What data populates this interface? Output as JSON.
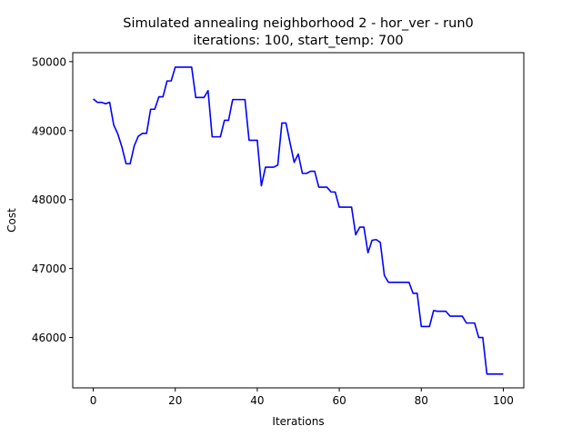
{
  "chart_data": {
    "type": "line",
    "title": "Simulated annealing neighborhood 2 - hor_ver - run0",
    "subtitle": "iterations: 100, start_temp: 700",
    "xlabel": "Iterations",
    "ylabel": "Cost",
    "xlim": [
      -5,
      105
    ],
    "ylim": [
      45270,
      50130
    ],
    "xticks": [
      0,
      20,
      40,
      60,
      80,
      100
    ],
    "yticks": [
      46000,
      47000,
      48000,
      49000,
      50000
    ],
    "grid": false,
    "line_color": "#0000ff",
    "series": [
      {
        "x": [
          0,
          1,
          2,
          3,
          4,
          5,
          6,
          7,
          8,
          9,
          10,
          11,
          12,
          13,
          14,
          15,
          16,
          17,
          18,
          19,
          20,
          21,
          22,
          23,
          24,
          25,
          26,
          27,
          28,
          29,
          30,
          31,
          32,
          33,
          34,
          35,
          36,
          37,
          38,
          39,
          40,
          41,
          42,
          43,
          44,
          45,
          46,
          47,
          48,
          49,
          50,
          51,
          52,
          53,
          54,
          55,
          56,
          57,
          58,
          59,
          60,
          61,
          62,
          63,
          64,
          65,
          66,
          67,
          68,
          69,
          70,
          71,
          72,
          73,
          74,
          75,
          76,
          77,
          78,
          79,
          80,
          81,
          82,
          83,
          84,
          85,
          86,
          87,
          88,
          89,
          90,
          91,
          92,
          93,
          94,
          95,
          96,
          97,
          98,
          99,
          100
        ],
        "values": [
          49460,
          49410,
          49410,
          49390,
          49410,
          49080,
          48950,
          48760,
          48520,
          48520,
          48780,
          48920,
          48960,
          48960,
          49310,
          49310,
          49490,
          49490,
          49720,
          49720,
          49920,
          49920,
          49920,
          49920,
          49920,
          49480,
          49480,
          49480,
          49580,
          48910,
          48910,
          48910,
          49150,
          49150,
          49450,
          49450,
          49450,
          49450,
          48860,
          48860,
          48860,
          48200,
          48470,
          48470,
          48470,
          48500,
          49110,
          49110,
          48820,
          48540,
          48660,
          48380,
          48380,
          48410,
          48410,
          48180,
          48180,
          48180,
          48110,
          48110,
          47890,
          47890,
          47890,
          47890,
          47490,
          47600,
          47600,
          47230,
          47410,
          47420,
          47380,
          46900,
          46800,
          46800,
          46800,
          46800,
          46800,
          46800,
          46640,
          46640,
          46160,
          46160,
          46160,
          46390,
          46380,
          46380,
          46380,
          46310,
          46310,
          46310,
          46310,
          46210,
          46210,
          46210,
          46000,
          46000,
          45470,
          45470,
          45470,
          45470,
          45470
        ]
      }
    ]
  }
}
